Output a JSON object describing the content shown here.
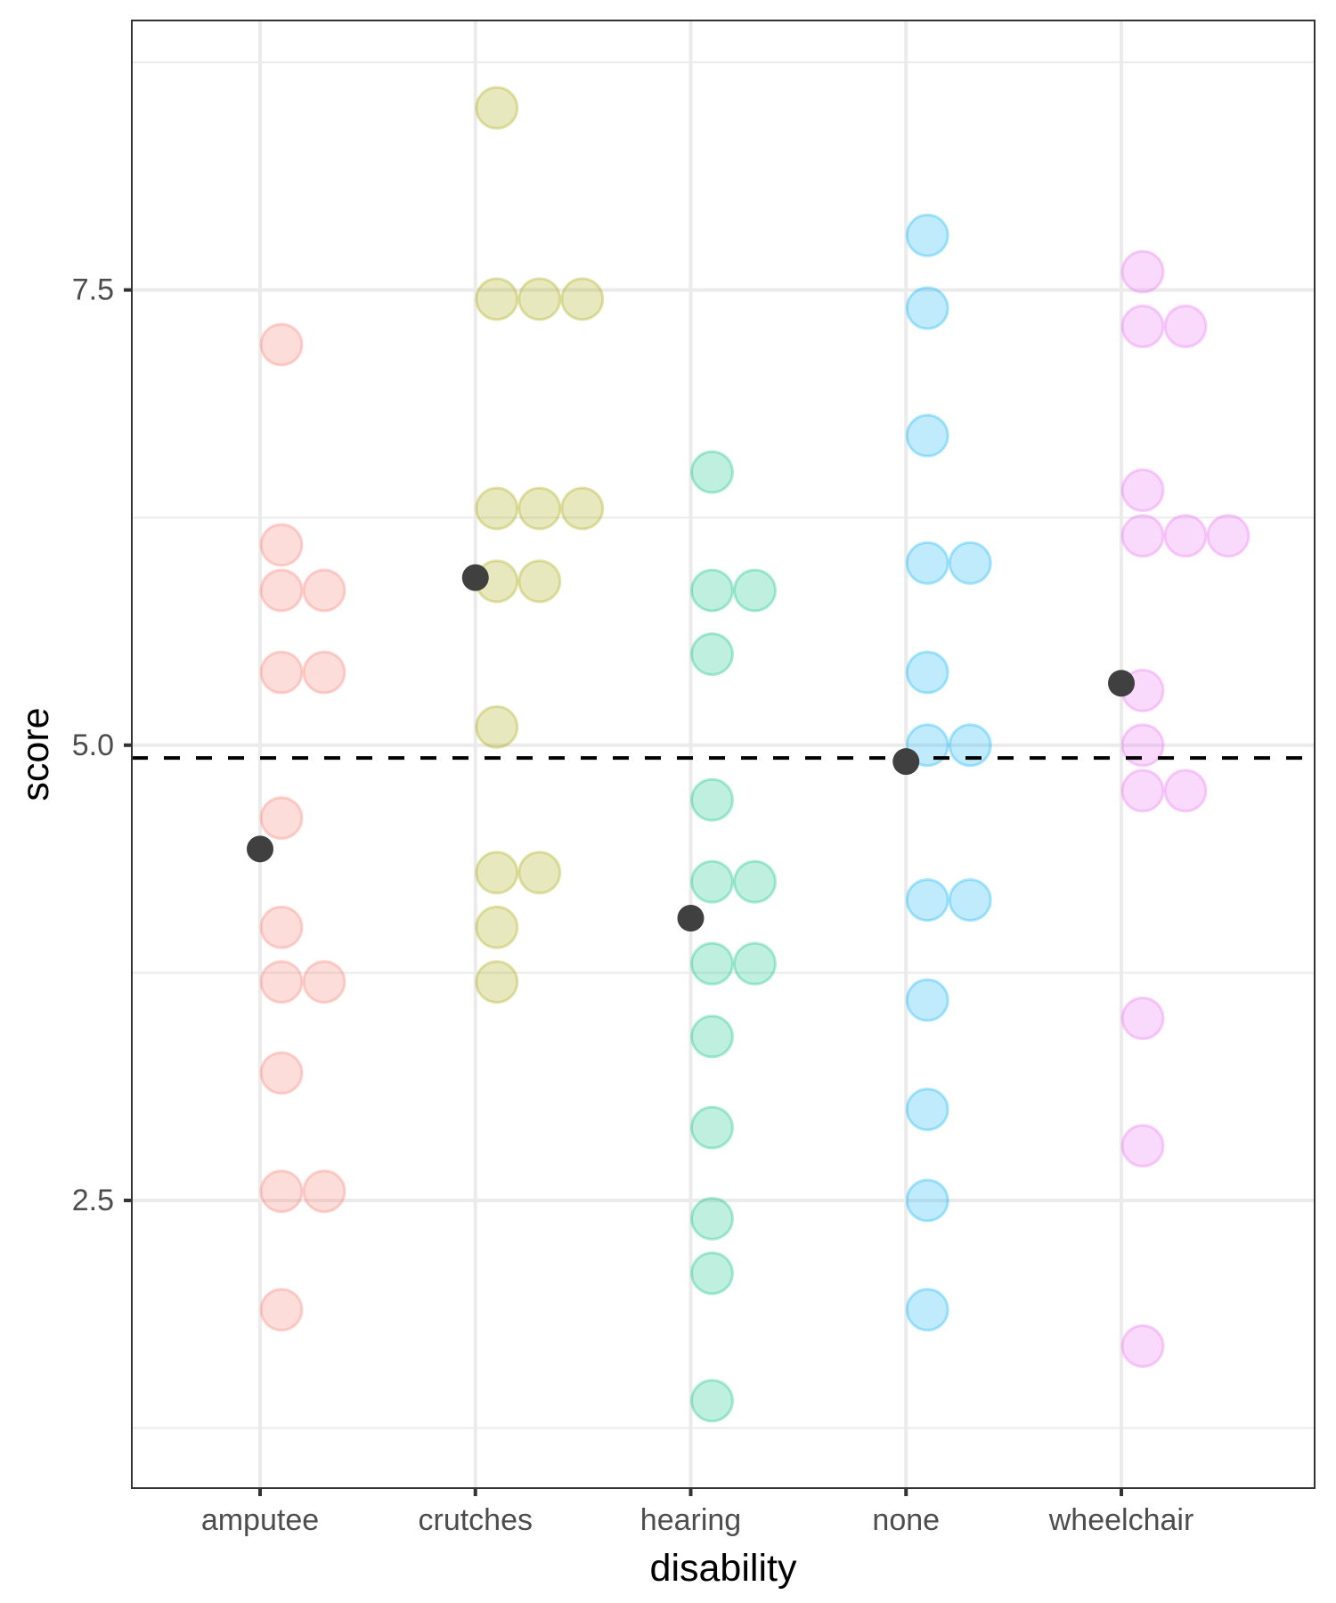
{
  "chart_data": {
    "type": "scatter",
    "subtype": "dotplot-with-means",
    "title": "",
    "xlabel": "disability",
    "ylabel": "score",
    "categories": [
      "amputee",
      "crutches",
      "hearing",
      "none",
      "wheelchair"
    ],
    "ylim": [
      0.92,
      8.98
    ],
    "y_ticks": [
      2.5,
      5.0,
      7.5
    ],
    "y_tick_labels": [
      "2.5",
      "5.0",
      "7.5"
    ],
    "y_minor_ticks": [
      1.25,
      3.75,
      6.25,
      8.75
    ],
    "grid": true,
    "legend": "none",
    "series": [
      {
        "name": "amputee",
        "color": "#F8766D",
        "values": [
          7.2,
          6.1,
          5.85,
          5.85,
          5.4,
          5.4,
          4.6,
          4.0,
          3.7,
          3.7,
          3.2,
          2.55,
          2.55,
          1.9
        ],
        "mean": 4.43
      },
      {
        "name": "crutches",
        "color": "#A3A500",
        "values": [
          8.5,
          7.45,
          7.45,
          7.45,
          6.3,
          6.3,
          6.3,
          5.9,
          5.9,
          5.1,
          4.3,
          4.3,
          4.0,
          3.7
        ],
        "mean": 5.92
      },
      {
        "name": "hearing",
        "color": "#00BF7D",
        "values": [
          6.5,
          5.85,
          5.85,
          5.5,
          4.7,
          4.25,
          4.25,
          3.8,
          3.8,
          3.4,
          2.9,
          2.4,
          2.1,
          1.4
        ],
        "mean": 4.05
      },
      {
        "name": "none",
        "color": "#00B0F6",
        "values": [
          7.8,
          7.4,
          6.7,
          6.0,
          6.0,
          5.4,
          5.0,
          5.0,
          4.15,
          4.15,
          3.6,
          3.0,
          2.5,
          1.9
        ],
        "mean": 4.91
      },
      {
        "name": "wheelchair",
        "color": "#E76BF3",
        "values": [
          7.6,
          7.3,
          7.3,
          6.4,
          6.15,
          6.15,
          6.15,
          5.3,
          5.0,
          4.75,
          4.75,
          3.5,
          2.8,
          1.7
        ],
        "mean": 5.34
      }
    ],
    "reference_line": {
      "value": 4.93,
      "style": "dashed",
      "color": "#000000"
    },
    "mean_marker_color": "#404040"
  }
}
